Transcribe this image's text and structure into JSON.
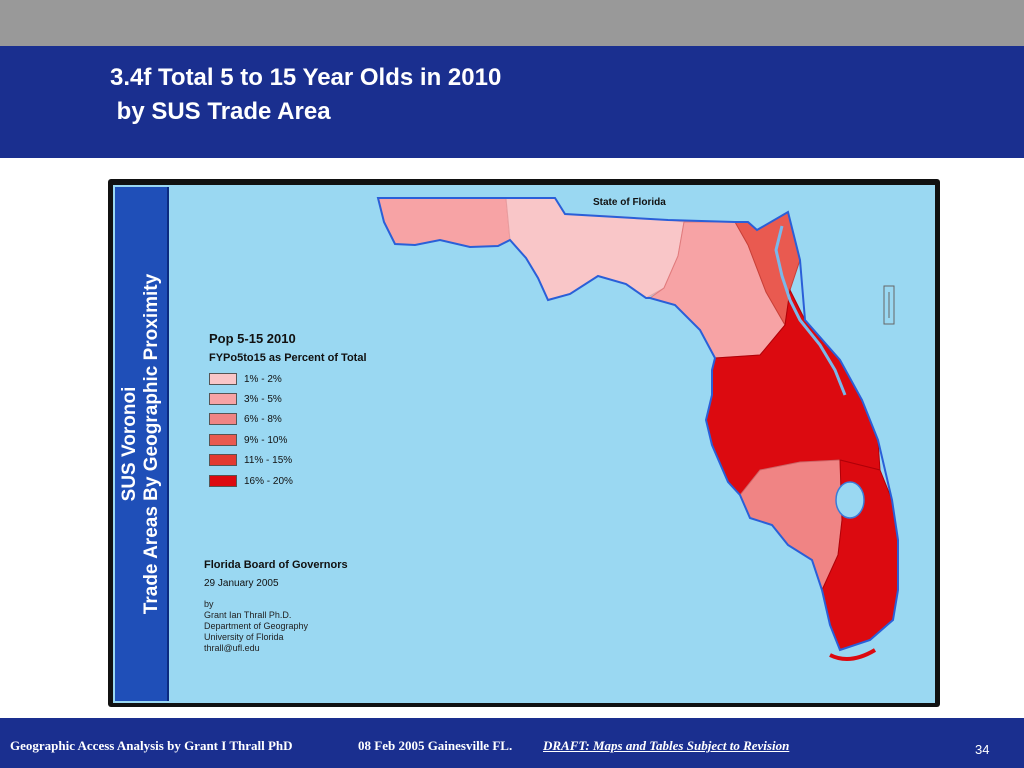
{
  "slide": {
    "title_line1": "3.4f Total 5 to 15 Year Olds in 2010",
    "title_line2": " by SUS Trade Area"
  },
  "side_panel": {
    "line1": "SUS Voronoi",
    "line2": "Trade Areas By Geographic Proximity"
  },
  "map": {
    "label": "State of Florida",
    "compass_glyph": "N",
    "region_colors": {
      "1-2": "#f9c6c8",
      "3-5": "#f7a3a5",
      "6-8": "#f08484",
      "9-10": "#e95a50",
      "11-15": "#e33a30",
      "16-20": "#dc0a10"
    }
  },
  "legend": {
    "title": "Pop 5-15 2010",
    "subtitle": "FYPo5to15 as Percent of Total",
    "items": [
      {
        "label": "1% - 2%",
        "color": "#f9c6c8"
      },
      {
        "label": "3% - 5%",
        "color": "#f7a3a5"
      },
      {
        "label": "6% - 8%",
        "color": "#f08484"
      },
      {
        "label": "9% - 10%",
        "color": "#e95a50"
      },
      {
        "label": "11% - 15%",
        "color": "#e33a30"
      },
      {
        "label": "16% - 20%",
        "color": "#dc0a10"
      }
    ]
  },
  "credits": {
    "org": "Florida Board of Governors",
    "date": "29 January 2005",
    "by": "by",
    "author": "Grant Ian Thrall Ph.D.",
    "dept": "Department of Geography",
    "univ": "University of Florida",
    "email": "thrall@ufl.edu"
  },
  "footer": {
    "left": "Geographic Access Analysis by Grant I Thrall PhD",
    "middle": "08 Feb 2005  Gainesville FL.",
    "draft": "DRAFT:  Maps and Tables Subject to Revision",
    "page": "34"
  }
}
